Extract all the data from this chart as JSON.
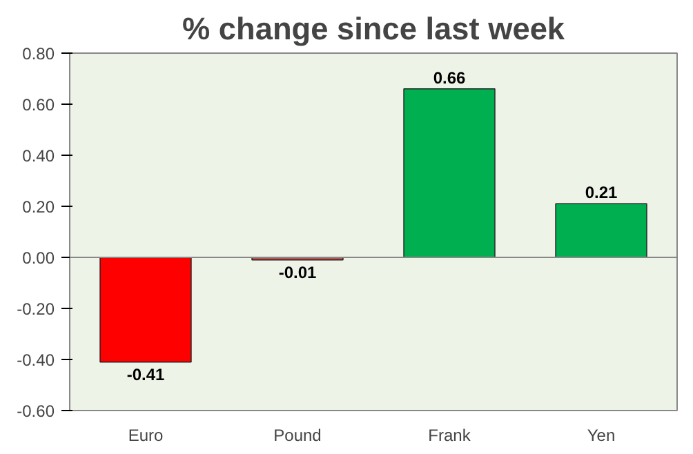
{
  "chart_data": {
    "type": "bar",
    "title": "% change since last week",
    "categories": [
      "Euro",
      "Pound",
      "Frank",
      "Yen"
    ],
    "values": [
      -0.41,
      -0.01,
      0.66,
      0.21
    ],
    "colors": [
      "#ff0000",
      "#c0504d",
      "#00b050",
      "#00b050"
    ],
    "ylim": [
      -0.6,
      0.8
    ],
    "yticks": [
      {
        "value": -0.6,
        "label": "-0.60"
      },
      {
        "value": -0.4,
        "label": "-0.40"
      },
      {
        "value": -0.2,
        "label": "-0.20"
      },
      {
        "value": 0,
        "label": "0.00"
      },
      {
        "value": 0.2,
        "label": "0.20"
      },
      {
        "value": 0.4,
        "label": "0.40"
      },
      {
        "value": 0.6,
        "label": "0.60"
      },
      {
        "value": 0.8,
        "label": "0.80"
      }
    ],
    "data_labels": true
  }
}
